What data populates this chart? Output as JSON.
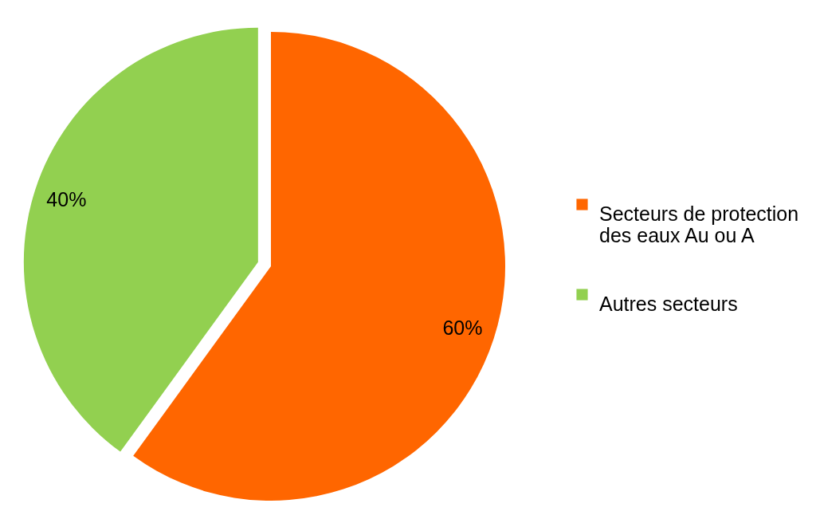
{
  "chart_data": {
    "type": "pie",
    "categories": [
      "Secteurs de protection des eaux Au ou A",
      "Autres secteurs"
    ],
    "values": [
      60,
      40
    ],
    "colors": [
      "#ff6600",
      "#92d050"
    ],
    "value_labels": [
      "60%",
      "40%"
    ],
    "legend": "right"
  }
}
